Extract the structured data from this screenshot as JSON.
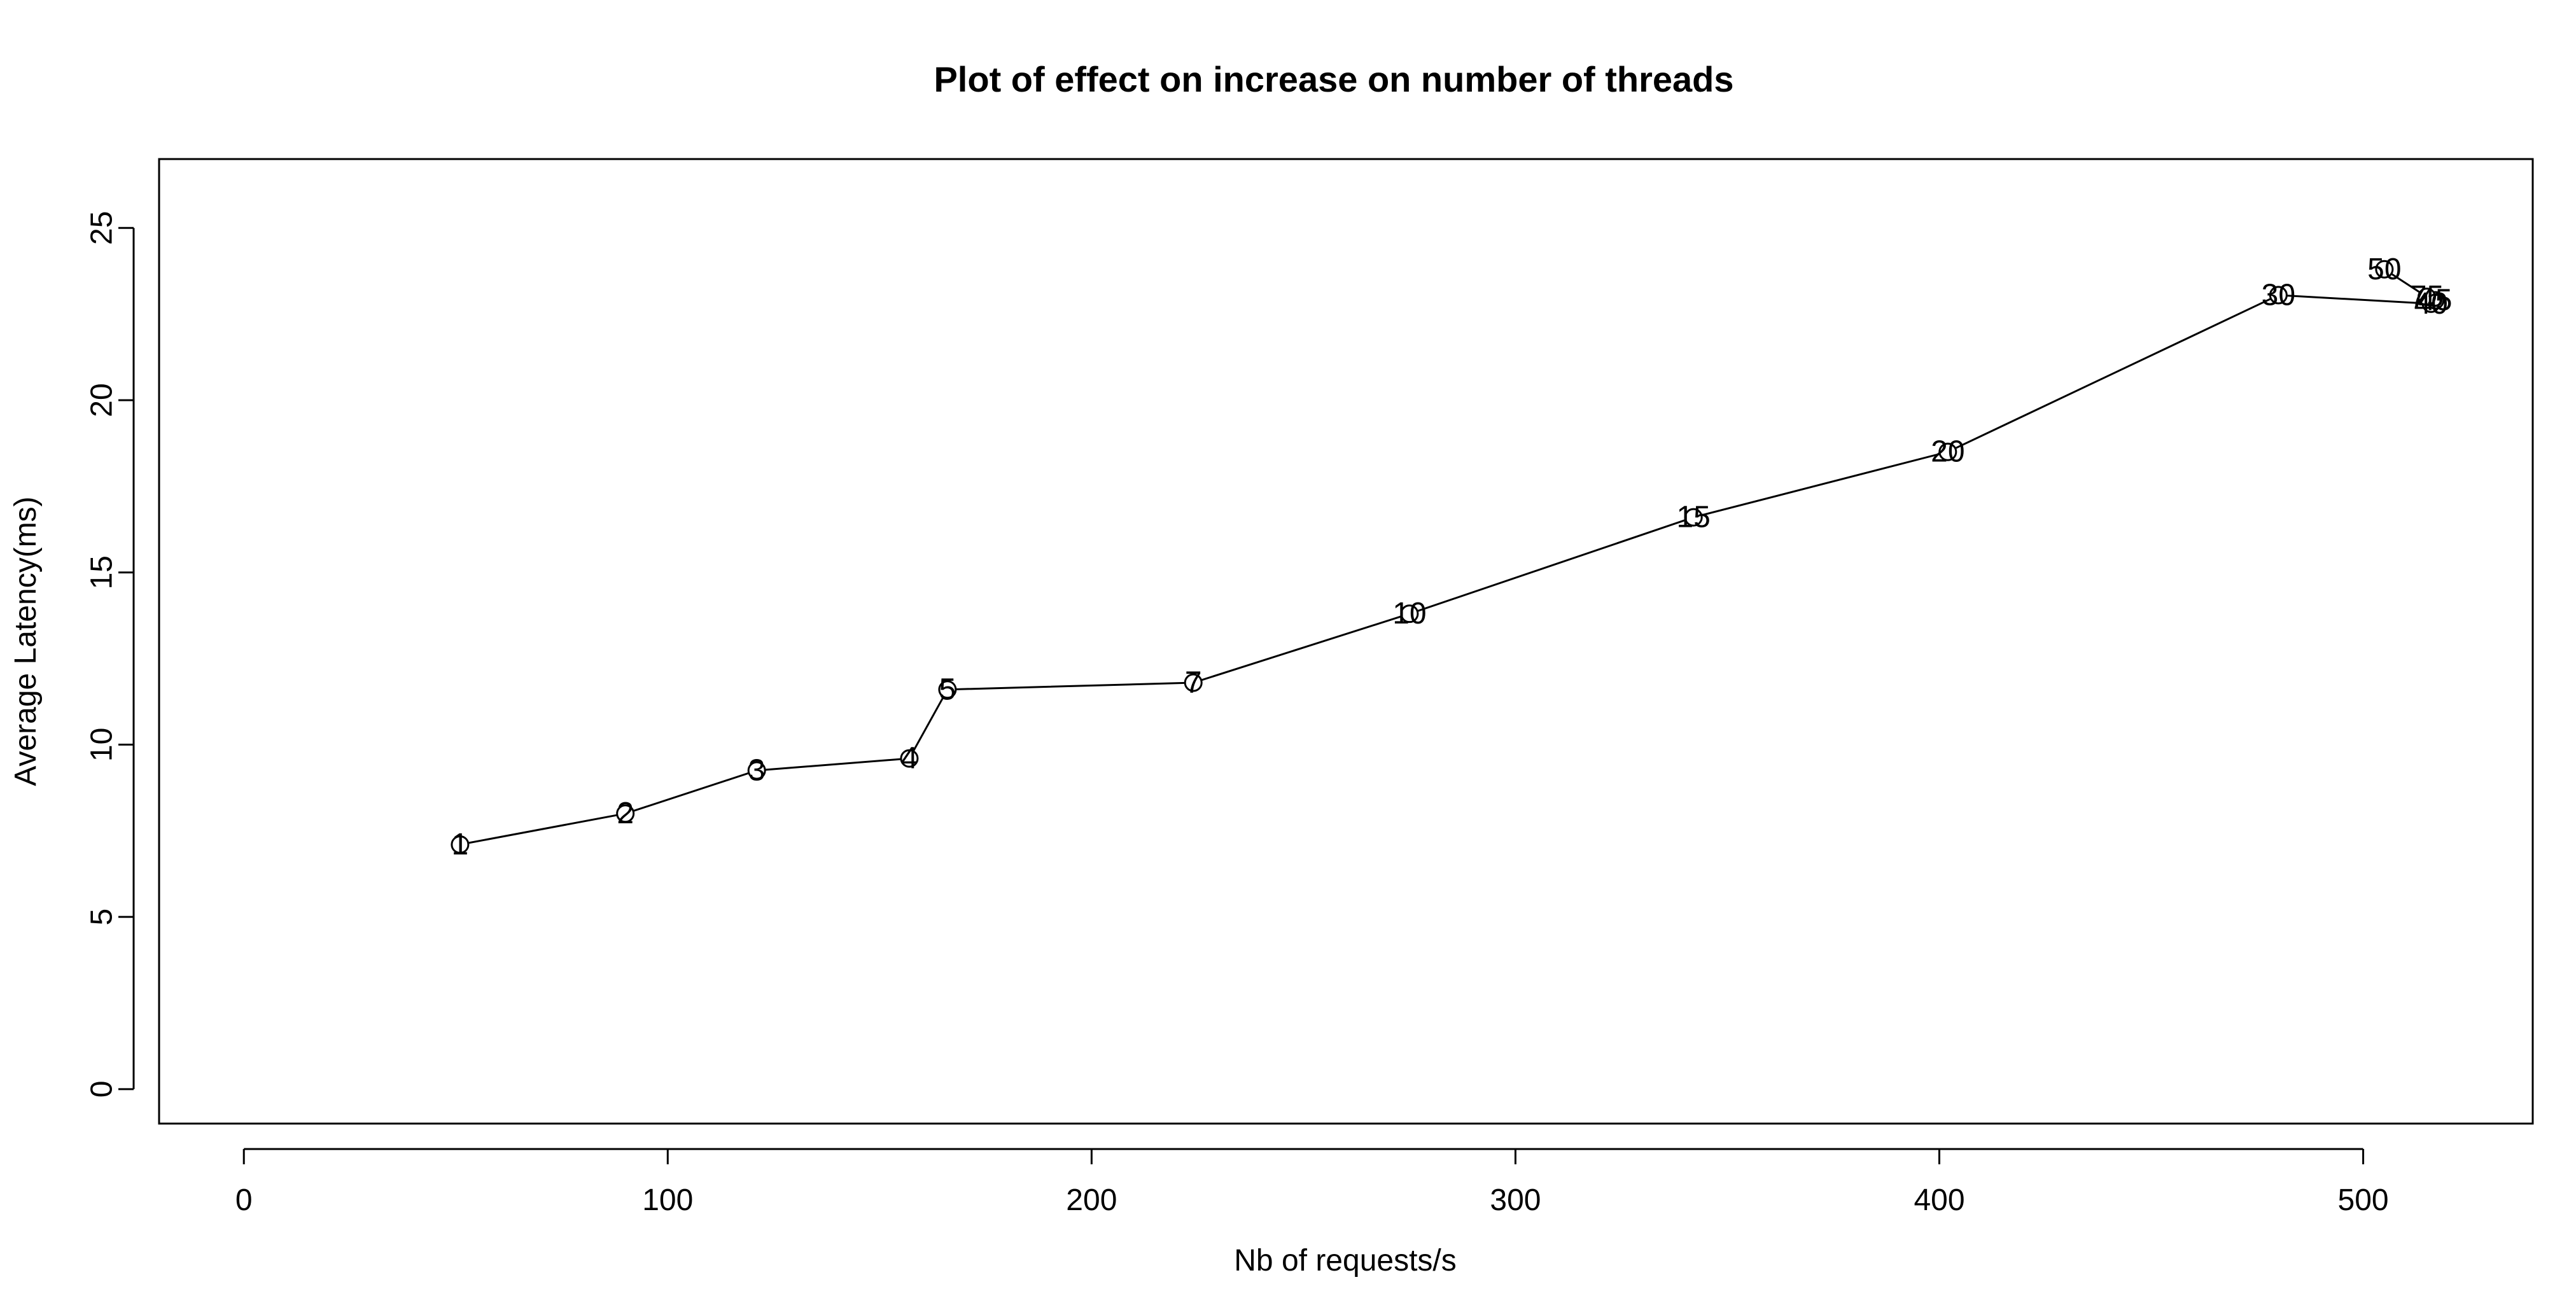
{
  "chart_data": {
    "type": "line",
    "title": "Plot of effect on increase on number of threads",
    "xlabel": "Nb of requests/s",
    "ylabel": "Average Latency(ms)",
    "xlim": [
      -20,
      540
    ],
    "ylim": [
      -1,
      27
    ],
    "xticks": [
      0,
      100,
      200,
      300,
      400,
      500
    ],
    "yticks": [
      0,
      5,
      10,
      15,
      20,
      25
    ],
    "grid": false,
    "legend": "none",
    "line_color": "#000000",
    "series": [
      {
        "x": [
          51,
          90,
          121,
          157,
          166,
          224,
          275,
          342,
          402,
          480,
          516,
          517,
          515,
          505
        ],
        "y": [
          7.1,
          8.0,
          9.25,
          9.6,
          11.6,
          11.8,
          13.8,
          16.6,
          18.5,
          23.05,
          22.8,
          22.9,
          23.0,
          23.8
        ],
        "labels": [
          "1",
          "2",
          "3",
          "4",
          "5",
          "7",
          "10",
          "15",
          "20",
          "30",
          "40",
          "45",
          "75",
          "50"
        ]
      }
    ]
  }
}
